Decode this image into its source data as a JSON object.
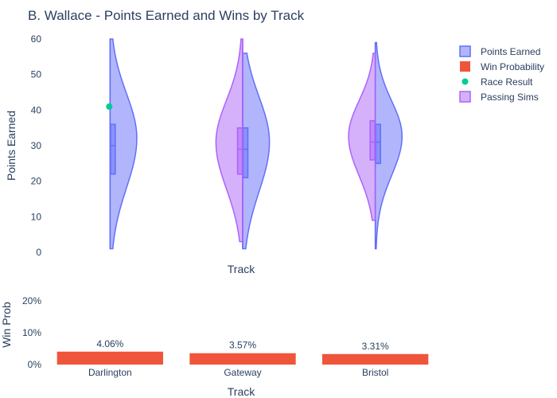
{
  "chart_data": [
    {
      "type": "violin",
      "title": "B. Wallace - Points Earned and Wins by Track",
      "xlabel": "Track",
      "ylabel": "Points Earned",
      "ylim": [
        0,
        60
      ],
      "yticks": [
        0,
        10,
        20,
        30,
        40,
        50,
        60
      ],
      "categories": [
        "Darlington",
        "Gateway",
        "Bristol"
      ],
      "series": [
        {
          "name": "Points Earned",
          "color": "#636efa",
          "side": "right",
          "distributions": [
            {
              "category": "Darlington",
              "min": 1,
              "max": 60,
              "q1": 22,
              "median": 30,
              "q3": 36
            },
            {
              "category": "Gateway",
              "min": 1,
              "max": 56,
              "q1": 21,
              "median": 29,
              "q3": 35
            },
            {
              "category": "Bristol",
              "min": 1,
              "max": 59,
              "q1": 25,
              "median": 31,
              "q3": 36
            }
          ]
        },
        {
          "name": "Passing Sims",
          "color": "#ab63fa",
          "side": "left",
          "distributions": [
            {
              "category": "Gateway",
              "min": 3,
              "max": 60,
              "q1": 22,
              "median": 29,
              "q3": 35
            },
            {
              "category": "Bristol",
              "min": 9,
              "max": 56,
              "q1": 26,
              "median": 31,
              "q3": 37
            }
          ]
        },
        {
          "name": "Race Result",
          "color": "#00cc96",
          "points": [
            {
              "category": "Darlington",
              "value": 41
            }
          ]
        }
      ]
    },
    {
      "type": "bar",
      "xlabel": "Track",
      "ylabel": "Win Prob",
      "ylim": [
        0,
        0.2
      ],
      "ytick_labels": [
        "0%",
        "10%",
        "20%"
      ],
      "categories": [
        "Darlington",
        "Gateway",
        "Bristol"
      ],
      "series": [
        {
          "name": "Win Probability",
          "color": "#ef553b",
          "values": [
            0.0406,
            0.0357,
            0.0331
          ],
          "labels": [
            "4.06%",
            "3.57%",
            "3.31%"
          ]
        }
      ]
    }
  ],
  "legend": {
    "position": "top-right",
    "items": [
      {
        "label": "Points Earned",
        "symbol": "box",
        "color": "#636efa"
      },
      {
        "label": "Win Probability",
        "symbol": "bar",
        "color": "#ef553b"
      },
      {
        "label": "Race Result",
        "symbol": "dot",
        "color": "#00cc96"
      },
      {
        "label": "Passing Sims",
        "symbol": "box",
        "color": "#ab63fa"
      }
    ]
  }
}
